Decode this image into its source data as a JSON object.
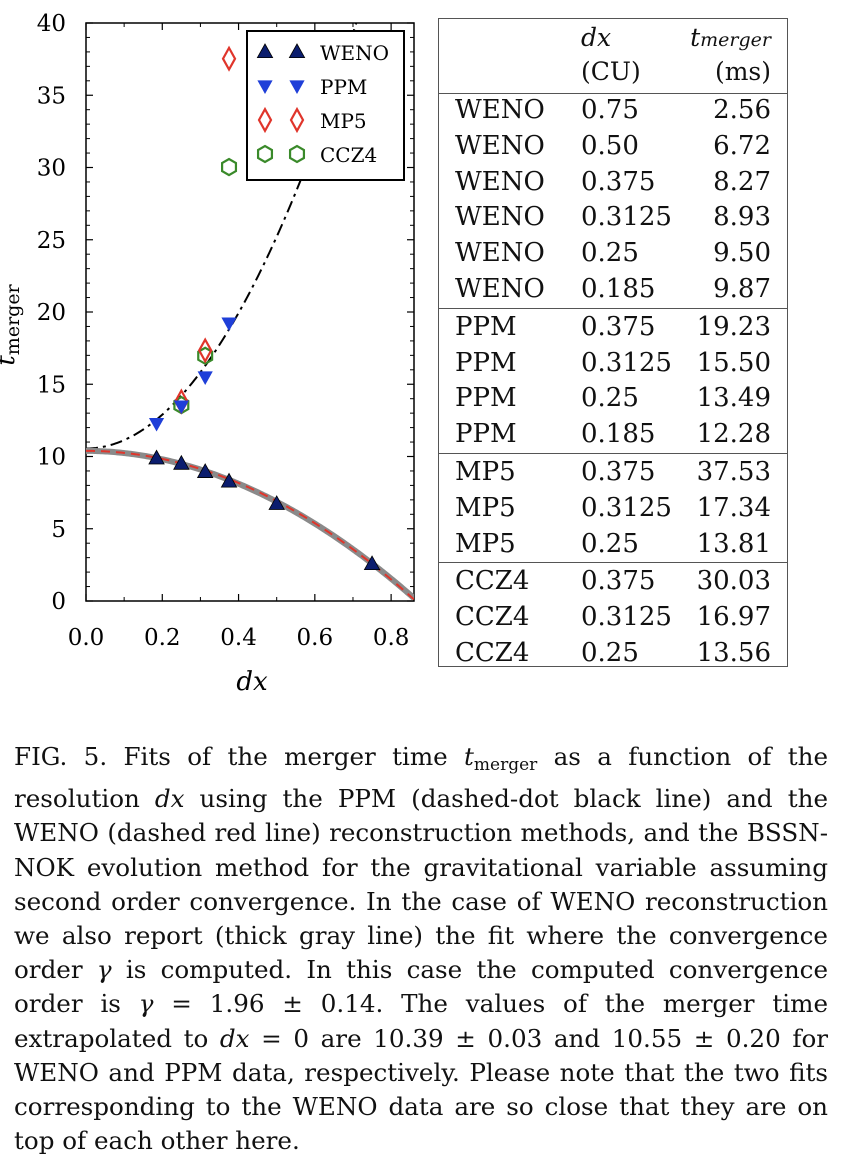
{
  "chart_data": {
    "type": "scatter",
    "x_label": "dx",
    "y_label": "t_merger",
    "x_ticks": [
      "0.0",
      "0.2",
      "0.4",
      "0.6",
      "0.8"
    ],
    "y_ticks": [
      "0",
      "5",
      "10",
      "15",
      "20",
      "25",
      "30",
      "35",
      "40"
    ],
    "xlim": [
      0.0,
      0.86
    ],
    "ylim": [
      0,
      40
    ],
    "series": [
      {
        "name": "WENO",
        "marker": "triangle-up",
        "color": "#0b1d6e",
        "x": [
          0.75,
          0.5,
          0.375,
          0.3125,
          0.25,
          0.185
        ],
        "y": [
          2.56,
          6.72,
          8.27,
          8.93,
          9.5,
          9.87
        ]
      },
      {
        "name": "PPM",
        "marker": "triangle-down",
        "color": "#1f3fd8",
        "x": [
          0.375,
          0.3125,
          0.25,
          0.185
        ],
        "y": [
          19.23,
          15.5,
          13.49,
          12.28
        ]
      },
      {
        "name": "MP5",
        "marker": "diamond",
        "color": "#e0352b",
        "x": [
          0.375,
          0.3125,
          0.25
        ],
        "y": [
          37.53,
          17.34,
          13.81
        ]
      },
      {
        "name": "CCZ4",
        "marker": "hexagon",
        "color": "#3a8a2a",
        "x": [
          0.375,
          0.3125,
          0.25
        ],
        "y": [
          30.03,
          16.97,
          13.56
        ]
      }
    ],
    "fits": [
      {
        "style": "dash-dot",
        "color": "#000000",
        "t0": 10.55,
        "k": 58.65,
        "p": 2
      },
      {
        "style": "thick",
        "color": "#8a8a8a",
        "t0": 10.39,
        "k": -13.7,
        "p": 1.96
      },
      {
        "style": "dashed",
        "color": "#e0352b",
        "t0": 10.39,
        "k": -13.9,
        "p": 2
      }
    ],
    "legend_position": "top-right"
  },
  "table": {
    "header_top": [
      "dx",
      "t_merger"
    ],
    "header_units": [
      "(CU)",
      "(ms)"
    ],
    "groups": [
      {
        "rows": [
          [
            "WENO",
            "0.75",
            "2.56"
          ],
          [
            "WENO",
            "0.50",
            "6.72"
          ],
          [
            "WENO",
            "0.375",
            "8.27"
          ],
          [
            "WENO",
            "0.3125",
            "8.93"
          ],
          [
            "WENO",
            "0.25",
            "9.50"
          ],
          [
            "WENO",
            "0.185",
            "9.87"
          ]
        ]
      },
      {
        "rows": [
          [
            "PPM",
            "0.375",
            "19.23"
          ],
          [
            "PPM",
            "0.3125",
            "15.50"
          ],
          [
            "PPM",
            "0.25",
            "13.49"
          ],
          [
            "PPM",
            "0.185",
            "12.28"
          ]
        ]
      },
      {
        "rows": [
          [
            "MP5",
            "0.375",
            "37.53"
          ],
          [
            "MP5",
            "0.3125",
            "17.34"
          ],
          [
            "MP5",
            "0.25",
            "13.81"
          ]
        ]
      },
      {
        "rows": [
          [
            "CCZ4",
            "0.375",
            "30.03"
          ],
          [
            "CCZ4",
            "0.3125",
            "16.97"
          ],
          [
            "CCZ4",
            "0.25",
            "13.56"
          ]
        ]
      }
    ]
  },
  "caption": {
    "label": "FIG. 5.",
    "p1": "Fits of the merger time ",
    "t_sym": "t",
    "t_sub": "merger",
    "p2": " as a function of the resolution ",
    "dx1": "dx",
    "p3": " using the PPM (dashed-dot black line) and the WENO (dashed red line) reconstruction methods, and the BSSN-NOK evolution method for the gravitational variable assuming second order convergence. In the case of WENO reconstruction we also report (thick gray line) the fit where the convergence order ",
    "gamma1": "γ",
    "p4": " is computed. In this case the computed convergence order is ",
    "gamma2": "γ",
    "p5": " = 1.96 ± 0.14. The values of the merger time extrapolated to ",
    "dx2": "dx",
    "p6": " = 0 are 10.39 ± 0.03 and 10.55 ± 0.20 for WENO and PPM data, respectively. Please note that the two fits corresponding to the WENO data are so close that they are on top of each other here."
  }
}
